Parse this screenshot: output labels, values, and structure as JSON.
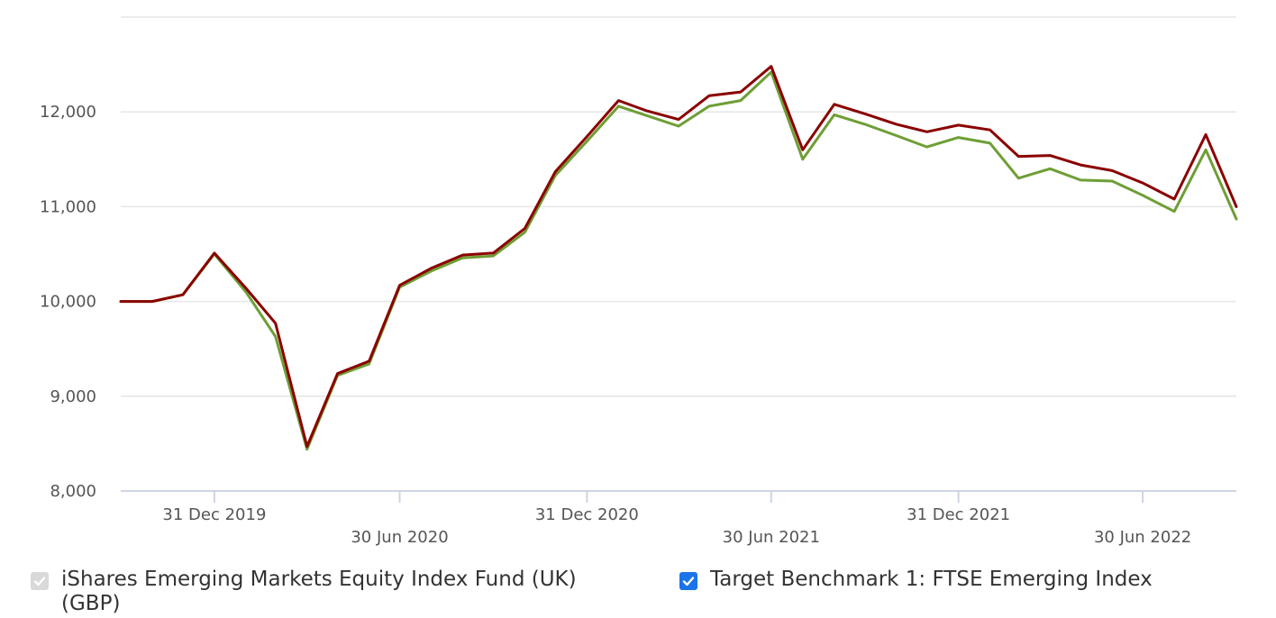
{
  "chart_data": {
    "type": "line",
    "x": [
      "2019-09-30",
      "2019-10-31",
      "2019-11-30",
      "2019-12-31",
      "2020-01-31",
      "2020-02-29",
      "2020-03-31",
      "2020-04-30",
      "2020-05-31",
      "2020-06-30",
      "2020-07-31",
      "2020-08-31",
      "2020-09-30",
      "2020-10-31",
      "2020-11-30",
      "2020-12-31",
      "2021-01-31",
      "2021-02-28",
      "2021-03-31",
      "2021-04-30",
      "2021-05-31",
      "2021-06-30",
      "2021-07-31",
      "2021-08-31",
      "2021-09-30",
      "2021-10-31",
      "2021-11-30",
      "2021-12-31",
      "2022-01-31",
      "2022-02-28",
      "2022-03-31",
      "2022-04-30",
      "2022-05-31",
      "2022-06-30",
      "2022-07-31",
      "2022-08-31",
      "2022-09-30"
    ],
    "series": [
      {
        "name": "iShares Emerging Markets Equity Index Fund (UK) (GBP)",
        "color": "#8b0000",
        "values": [
          10000,
          10000,
          10070,
          10510,
          10140,
          9770,
          8470,
          9240,
          9370,
          10170,
          10350,
          10490,
          10510,
          10770,
          11370,
          11740,
          12120,
          12010,
          11920,
          12170,
          12210,
          12480,
          11600,
          12080,
          11980,
          11870,
          11790,
          11860,
          11810,
          11530,
          11540,
          11440,
          11380,
          11250,
          11080,
          11760,
          11000
        ]
      },
      {
        "name": "Target Benchmark 1: FTSE Emerging Index",
        "color": "#6e9e35",
        "values": [
          10000,
          10000,
          10070,
          10500,
          10100,
          9630,
          8440,
          9220,
          9340,
          10150,
          10320,
          10460,
          10480,
          10730,
          11330,
          11690,
          12060,
          11960,
          11850,
          12060,
          12120,
          12420,
          11500,
          11970,
          11870,
          11750,
          11630,
          11730,
          11670,
          11300,
          11400,
          11280,
          11270,
          11120,
          10950,
          11600,
          10870
        ]
      }
    ],
    "y_ticks": [
      "8,000",
      "9,000",
      "10,000",
      "11,000",
      "12,000"
    ],
    "y_tick_values": [
      8000,
      9000,
      10000,
      11000,
      12000
    ],
    "ylim": [
      8000,
      13000
    ],
    "x_ticks": [
      {
        "date": "2019-12-31",
        "label": "31 Dec 2019",
        "row": 1
      },
      {
        "date": "2020-06-30",
        "label": "30 Jun 2020",
        "row": 2
      },
      {
        "date": "2020-12-31",
        "label": "31 Dec 2020",
        "row": 1
      },
      {
        "date": "2021-06-30",
        "label": "30 Jun 2021",
        "row": 2
      },
      {
        "date": "2021-12-31",
        "label": "31 Dec 2021",
        "row": 1
      },
      {
        "date": "2022-06-30",
        "label": "30 Jun 2022",
        "row": 2
      }
    ],
    "grid": true,
    "legend_position": "bottom"
  },
  "legend": {
    "items": [
      {
        "label": "iShares Emerging Markets Equity Index Fund (UK) (GBP)",
        "checked": true,
        "disabled": true
      },
      {
        "label": "Target Benchmark 1: FTSE Emerging Index",
        "checked": true,
        "disabled": false
      }
    ]
  }
}
